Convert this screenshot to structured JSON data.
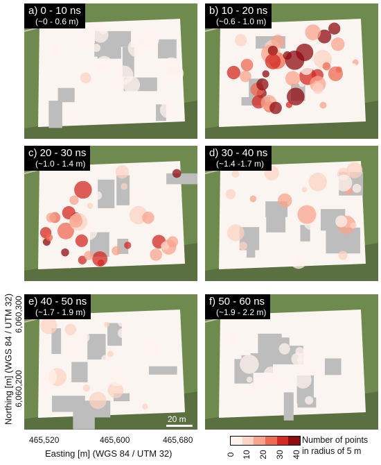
{
  "panels": [
    {
      "id": "a",
      "title": "a) 0 - 10 ns",
      "depth": "(~0 - 0.6 m)",
      "intensity": 0.15
    },
    {
      "id": "b",
      "title": "b) 10 - 20 ns",
      "depth": "(~0.6 - 1.0 m)",
      "intensity": 0.85
    },
    {
      "id": "c",
      "title": "c) 20 - 30 ns",
      "depth": "(~1.0 - 1.4 m)",
      "intensity": 0.7
    },
    {
      "id": "d",
      "title": "d) 30 - 40 ns",
      "depth": "(~1.4 -1.7 m)",
      "intensity": 0.35
    },
    {
      "id": "e",
      "title": "e) 40 - 50 ns",
      "depth": "(~1.7 - 1.9 m)",
      "intensity": 0.2
    },
    {
      "id": "f",
      "title": "f) 50 - 60 ns",
      "depth": "(~1.9 - 2.2 m)",
      "intensity": 0.12
    }
  ],
  "axes": {
    "xlabel": "Easting [m] (WGS 84 / UTM 32)",
    "ylabel": "Northing [m] (WGS 84 / UTM 32)",
    "xticks": [
      "465,520",
      "465,600",
      "465,680"
    ],
    "yticks": [
      "6,060,300",
      "6,060,200"
    ]
  },
  "scalebar": "20 m",
  "legend": {
    "title_line1": "Number of points",
    "title_line2": "in radius of 5 m",
    "ticks": [
      "0",
      "10",
      "20",
      "30",
      "40"
    ],
    "colors": [
      "#fff1ec",
      "#fdd3c4",
      "#f8a48c",
      "#ee6a51",
      "#d32a22",
      "#8f0b10"
    ]
  },
  "colors": {
    "field": "#6f8a4e",
    "gray": "#bdbdbd",
    "border": "#222222"
  }
}
